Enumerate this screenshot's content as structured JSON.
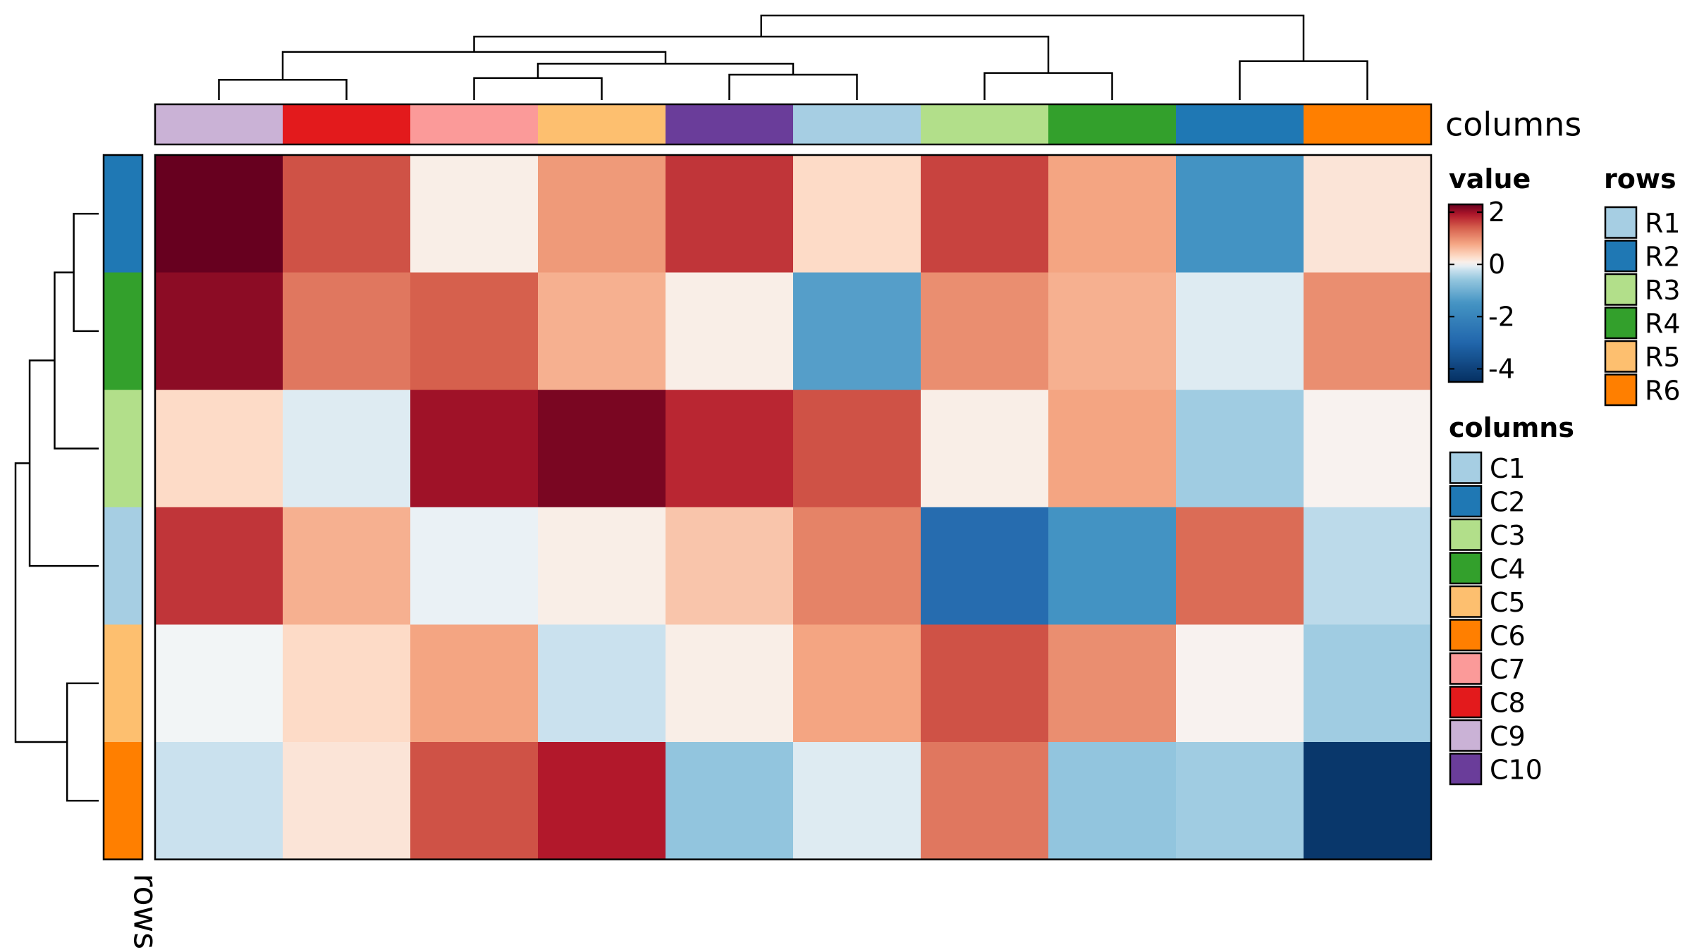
{
  "chart_data": {
    "type": "heatmap",
    "title": "",
    "color_scale": {
      "name": "value",
      "ticks": [
        2,
        0,
        -2,
        -4
      ],
      "range": [
        -4.5,
        2.3
      ],
      "stops": [
        {
          "v": -4.5,
          "c": "#053061"
        },
        {
          "v": -3.0,
          "c": "#2166ac"
        },
        {
          "v": -1.5,
          "c": "#4393c3"
        },
        {
          "v": -0.6,
          "c": "#92c5de"
        },
        {
          "v": -0.15,
          "c": "#d1e5f0"
        },
        {
          "v": 0.0,
          "c": "#f7f7f7"
        },
        {
          "v": 0.3,
          "c": "#fddbc7"
        },
        {
          "v": 0.8,
          "c": "#f4a582"
        },
        {
          "v": 1.4,
          "c": "#d6604d"
        },
        {
          "v": 1.9,
          "c": "#b2182b"
        },
        {
          "v": 2.3,
          "c": "#67001f"
        }
      ]
    },
    "row_order": [
      "R2",
      "R4",
      "R3",
      "R1",
      "R5",
      "R6"
    ],
    "column_order": [
      "C9",
      "C8",
      "C7",
      "C5",
      "C10",
      "C1",
      "C3",
      "C4",
      "C2",
      "C6"
    ],
    "matrix": [
      [
        2.3,
        1.5,
        0.1,
        0.9,
        1.7,
        0.3,
        1.6,
        0.8,
        -1.5,
        0.2
      ],
      [
        2.1,
        1.2,
        1.4,
        0.7,
        0.1,
        -1.3,
        1.0,
        0.7,
        -0.1,
        1.0
      ],
      [
        0.3,
        -0.1,
        2.0,
        2.2,
        1.8,
        1.5,
        0.1,
        0.8,
        -0.5,
        0.05
      ],
      [
        1.7,
        0.7,
        -0.05,
        0.1,
        0.5,
        1.1,
        -2.8,
        -1.5,
        1.3,
        -0.3
      ],
      [
        -0.02,
        0.3,
        0.8,
        -0.2,
        0.1,
        0.8,
        1.5,
        1.0,
        0.05,
        -0.5
      ],
      [
        -0.2,
        0.2,
        1.5,
        1.9,
        -0.6,
        -0.1,
        1.2,
        -0.6,
        -0.5,
        -4.3
      ]
    ],
    "annotations": {
      "columns": {
        "name": "columns",
        "legend_title": "columns",
        "levels": [
          {
            "label": "C1",
            "color": "#a6cee3"
          },
          {
            "label": "C2",
            "color": "#1f78b4"
          },
          {
            "label": "C3",
            "color": "#b2df8a"
          },
          {
            "label": "C4",
            "color": "#33a02c"
          },
          {
            "label": "C5",
            "color": "#fdbf6f"
          },
          {
            "label": "C6",
            "color": "#ff7f00"
          },
          {
            "label": "C7",
            "color": "#fb9a99"
          },
          {
            "label": "C8",
            "color": "#e31a1c"
          },
          {
            "label": "C9",
            "color": "#cab2d6"
          },
          {
            "label": "C10",
            "color": "#6a3d9a"
          }
        ]
      },
      "rows": {
        "name": "rows",
        "legend_title": "rows",
        "levels": [
          {
            "label": "R1",
            "color": "#a6cee3"
          },
          {
            "label": "R2",
            "color": "#1f78b4"
          },
          {
            "label": "R3",
            "color": "#b2df8a"
          },
          {
            "label": "R4",
            "color": "#33a02c"
          },
          {
            "label": "R5",
            "color": "#fdbf6f"
          },
          {
            "label": "R6",
            "color": "#ff7f00"
          }
        ]
      }
    },
    "column_dendrogram": {
      "merges": [
        {
          "a": 0,
          "b": 1,
          "h": 0.24
        },
        {
          "a": 2,
          "b": 3,
          "h": 0.26
        },
        {
          "a": 4,
          "b": 5,
          "h": 0.3
        },
        {
          "a": 6,
          "b": 7,
          "h": 0.32
        },
        {
          "a": 8,
          "b": 9,
          "h": 0.46
        },
        {
          "a": "m1",
          "b": "m2",
          "h": 0.43
        },
        {
          "a": "m0",
          "b": "m5",
          "h": 0.57
        },
        {
          "a": "m6",
          "b": "m3",
          "h": 0.75
        },
        {
          "a": "m7",
          "b": "m4",
          "h": 1.0
        }
      ]
    },
    "row_dendrogram": {
      "merges": [
        {
          "a": 0,
          "b": 1,
          "h": 0.3
        },
        {
          "a": 4,
          "b": 5,
          "h": 0.38
        },
        {
          "a": "m0",
          "b": 2,
          "h": 0.53
        },
        {
          "a": "m2",
          "b": 3,
          "h": 0.83
        },
        {
          "a": "m3",
          "b": "m1",
          "h": 1.0
        }
      ]
    }
  }
}
